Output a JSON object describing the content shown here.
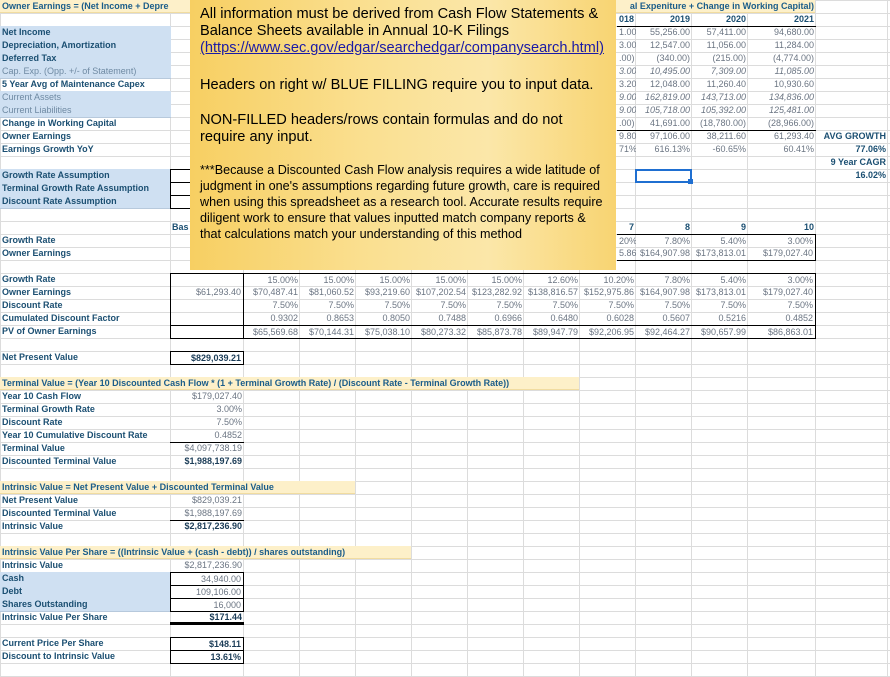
{
  "note": {
    "line1": "All information must be derived from Cash Flow Statements & Balance Sheets available in Annual 10-K Filings",
    "link": "(https://www.sec.gov/edgar/searchedgar/companysearch.html)",
    "line2": "Headers on right w/ BLUE FILLING require you to input data.",
    "line3": "NON-FILLED headers/rows contain formulas and do not require any input.",
    "line4": "***Because a Discounted Cash Flow analysis requires a wide latitude of judgment in one's assumptions regarding future growth, care is required when using this spreadsheet as a research tool. Accurate results require diligent work to ensure that values inputted match company reports & that calculations match your understanding of this method"
  },
  "colors": {
    "input_fill": "#cfe0f2",
    "banner_fill": "#fdf0c9",
    "label_text": "#1b4f72",
    "note_fill": "#f9d77a",
    "selection": "#1f6fd1"
  },
  "sheet": {
    "rows": [
      {
        "A": "Owner Earnings = (Net Income + Depre",
        "I": "al Expeniture + Change in Working Capital)"
      },
      {
        "I": "018",
        "J": "2019",
        "K": "2020",
        "L": "2021"
      },
      {
        "A": "Net Income",
        "I": "1.00",
        "J": "55,256.00",
        "K": "57,411.00",
        "L": "94,680.00"
      },
      {
        "A": "Depreciation, Amortization",
        "I": "3.00",
        "J": "12,547.00",
        "K": "11,056.00",
        "L": "11,284.00"
      },
      {
        "A": "Deferred Tax",
        "I": ".00)",
        "J": "(340.00)",
        "K": "(215.00)",
        "L": "(4,774.00)"
      },
      {
        "A": "Cap. Exp. (Opp. +/- of Statement)",
        "I": "3.00",
        "J": "10,495.00",
        "K": "7,309.00",
        "L": "11,085.00"
      },
      {
        "A": "5 Year Avg of Maintenance Capex",
        "I": "3.20",
        "J": "12,048.00",
        "K": "11,260.40",
        "L": "10,930.60"
      },
      {
        "A": "Current Assets",
        "I": "9.00",
        "J": "162,819.00",
        "K": "143,713.00",
        "L": "134,836.00"
      },
      {
        "A": "Current Liabilities",
        "I": "9.00",
        "J": "105,718.00",
        "K": "105,392.00",
        "L": "125,481.00"
      },
      {
        "A": "Change in Working Capital",
        "I": ".00)",
        "J": "41,691.00",
        "K": "(18,780.00)",
        "L": "(28,966.00)"
      },
      {
        "A": "Owner Earnings",
        "I": "9.80",
        "J": "97,106.00",
        "K": "38,211.60",
        "L": "61,293.40",
        "M": "AVG GROWTH"
      },
      {
        "A": "Earnings Growth YoY",
        "I": "71%",
        "J": "616.13%",
        "K": "-60.65%",
        "L": "60.41%",
        "M": "77.06%"
      },
      {
        "M": "9 Year CAGR"
      },
      {
        "A": "Growth Rate Assumption",
        "M": "16.02%"
      },
      {
        "A": "Terminal Growth Rate Assumption"
      },
      {
        "A": "Discount Rate Assumption"
      },
      {},
      {
        "B": "Bas",
        "I": "7",
        "J": "8",
        "K": "9",
        "L": "10"
      },
      {
        "A": "Growth Rate",
        "I": "20%",
        "J": "7.80%",
        "K": "5.40%",
        "L": "3.00%"
      },
      {
        "A": "Owner Earnings",
        "I": "5.86",
        "J": "$164,907.98",
        "K": "$173,813.01",
        "L": "$179,027.40"
      },
      {},
      {
        "A": "Growth Rate",
        "C": "15.00%",
        "D": "15.00%",
        "E": "15.00%",
        "F": "15.00%",
        "G": "15.00%",
        "H": "12.60%",
        "I": "10.20%",
        "J": "7.80%",
        "K": "5.40%",
        "L": "3.00%"
      },
      {
        "A": "Owner Earnings",
        "B": "$61,293.40",
        "C": "$70,487.41",
        "D": "$81,060.52",
        "E": "$93,219.60",
        "F": "$107,202.54",
        "G": "$123,282.92",
        "H": "$138,816.57",
        "I": "$152,975.86",
        "J": "$164,907.98",
        "K": "$173,813.01",
        "L": "$179,027.40"
      },
      {
        "A": "Discount Rate",
        "C": "7.50%",
        "D": "7.50%",
        "E": "7.50%",
        "F": "7.50%",
        "G": "7.50%",
        "H": "7.50%",
        "I": "7.50%",
        "J": "7.50%",
        "K": "7.50%",
        "L": "7.50%"
      },
      {
        "A": "Cumulated Discount Factor",
        "C": "0.9302",
        "D": "0.8653",
        "E": "0.8050",
        "F": "0.7488",
        "G": "0.6966",
        "H": "0.6480",
        "I": "0.6028",
        "J": "0.5607",
        "K": "0.5216",
        "L": "0.4852"
      },
      {
        "A": "PV of Owner Earnings",
        "C": "$65,569.68",
        "D": "$70,144.31",
        "E": "$75,038.10",
        "F": "$80,273.32",
        "G": "$85,873.78",
        "H": "$89,947.79",
        "I": "$92,206.95",
        "J": "$92,464.27",
        "K": "$90,657.99",
        "L": "$86,863.01"
      },
      {},
      {
        "A": "Net Present Value",
        "B": "$829,039.21"
      },
      {},
      {
        "A": "Terminal Value = (Year 10 Discounted Cash Flow * (1 + Terminal Growth Rate) / (Discount Rate - Terminal Growth Rate))"
      },
      {
        "A": "Year 10 Cash Flow",
        "B": "$179,027.40"
      },
      {
        "A": "Terminal Growth Rate",
        "B": "3.00%"
      },
      {
        "A": "Discount Rate",
        "B": "7.50%"
      },
      {
        "A": "Year 10 Cumulative Discount Rate",
        "B": "0.4852"
      },
      {
        "A": "Terminal Value",
        "B": "$4,097,738.19"
      },
      {
        "A": "Discounted Terminal Value",
        "B": "$1,988,197.69"
      },
      {},
      {
        "A": "Intrinsic Value = Net Present Value + Discounted Terminal Value"
      },
      {
        "A": "Net Present Value",
        "B": "$829,039.21"
      },
      {
        "A": "Discounted Terminal Value",
        "B": "$1,988,197.69"
      },
      {
        "A": "Intrinsic Value",
        "B": "$2,817,236.90"
      },
      {},
      {
        "A": "Intrinsic Value Per Share = ((Intrinsic Value + (cash - debt)) / shares outstanding)"
      },
      {
        "A": "Intrinsic Value",
        "B": "$2,817,236.90"
      },
      {
        "A": "Cash",
        "B": "34,940.00"
      },
      {
        "A": "Debt",
        "B": "109,106.00"
      },
      {
        "A": "Shares Outstanding",
        "B": "16,000"
      },
      {
        "A": "Intrinsic Value Per Share",
        "B": "$171.44"
      },
      {},
      {
        "A": "Current Price Per Share",
        "B": "$148.11"
      },
      {
        "A": "Discount to Intrinsic Value",
        "B": "13.61%"
      },
      {},
      {}
    ]
  }
}
